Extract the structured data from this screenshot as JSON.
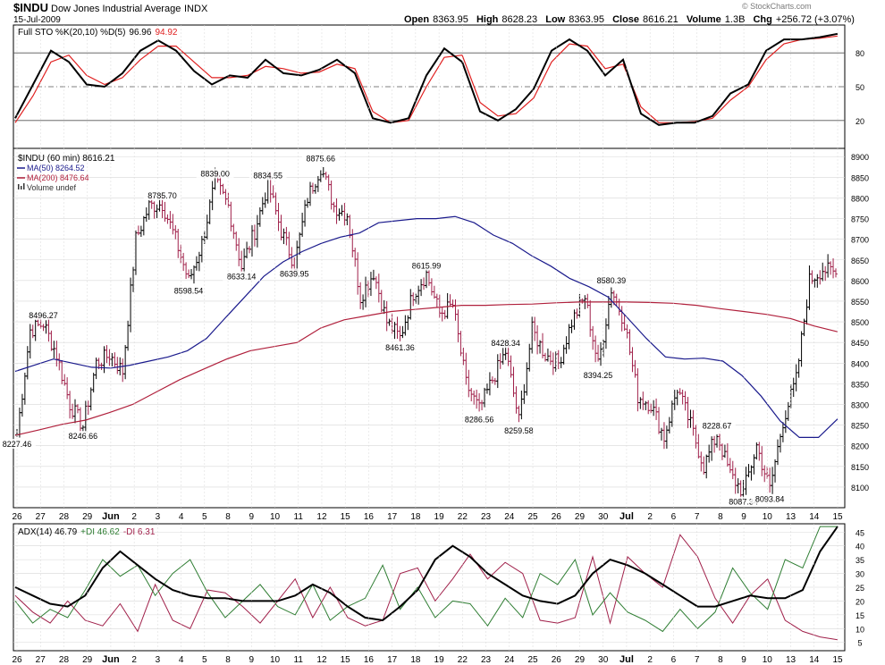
{
  "header": {
    "symbol": "$INDU",
    "name": "Dow Jones Industrial Average",
    "exchange": "INDX",
    "date": "15-Jul-2009",
    "open_label": "Open",
    "open": "8363.95",
    "high_label": "High",
    "high": "8628.23",
    "low_label": "Low",
    "low": "8363.95",
    "close_label": "Close",
    "close": "8616.21",
    "volume_label": "Volume",
    "volume": "1.3B",
    "chg_label": "Chg",
    "chg": "+256.72 (+3.07%)",
    "watermark": "© StockCharts.com"
  },
  "colors": {
    "price_bar": "#000000",
    "price_bar_down": "#a0204a",
    "ma50": "#1a1a8c",
    "ma200": "#b0203c",
    "sto_k": "#000000",
    "sto_d": "#e02020",
    "adx": "#000000",
    "plus_di": "#2e7d32",
    "minus_di": "#a0204a",
    "grid": "#d8d8d8",
    "watermark": "#7a7a7a"
  },
  "chart_data": [
    {
      "type": "line",
      "panel": "stochastic",
      "legend": {
        "prefix": "Full STO %K(20,10) %D(5)",
        "k_value": "96.96",
        "d_value": "94.92"
      },
      "ylim": [
        0,
        100
      ],
      "y_ticks": [
        20,
        50,
        80
      ],
      "reference_lines": [
        20,
        50,
        80
      ],
      "series": [
        {
          "name": "%K",
          "values": [
            22,
            52,
            82,
            72,
            52,
            50,
            62,
            82,
            91,
            82,
            64,
            52,
            60,
            58,
            74,
            62,
            60,
            65,
            74,
            62,
            22,
            18,
            22,
            60,
            84,
            72,
            28,
            20,
            30,
            48,
            82,
            92,
            82,
            60,
            74,
            26,
            16,
            18,
            18,
            24,
            44,
            52,
            82,
            92,
            92,
            94,
            97
          ]
        },
        {
          "name": "%D",
          "values": [
            18,
            42,
            72,
            78,
            60,
            52,
            58,
            74,
            86,
            86,
            72,
            58,
            58,
            60,
            68,
            66,
            62,
            63,
            70,
            66,
            28,
            18,
            20,
            50,
            76,
            78,
            36,
            24,
            26,
            40,
            72,
            88,
            86,
            66,
            70,
            32,
            18,
            18,
            19,
            22,
            38,
            50,
            74,
            88,
            92,
            93,
            95
          ]
        }
      ]
    },
    {
      "type": "bar",
      "subtype": "ohlc",
      "panel": "price",
      "legend": {
        "title": "$INDU (60 min) 8616.21",
        "ma50": "MA(50) 8264.52",
        "ma200": "MA(200) 8476.64",
        "volume": "Volume undef"
      },
      "ylim": [
        8050,
        8920
      ],
      "y_ticks": [
        8100,
        8150,
        8200,
        8250,
        8300,
        8350,
        8400,
        8450,
        8500,
        8550,
        8600,
        8650,
        8700,
        8750,
        8800,
        8850,
        8900
      ],
      "price_path": [
        8227,
        8480,
        8496,
        8420,
        8300,
        8247,
        8400,
        8420,
        8380,
        8700,
        8780,
        8786,
        8700,
        8598,
        8690,
        8839,
        8780,
        8633,
        8720,
        8834,
        8720,
        8640,
        8800,
        8876,
        8780,
        8760,
        8560,
        8620,
        8500,
        8461,
        8570,
        8616,
        8520,
        8540,
        8350,
        8287,
        8360,
        8428,
        8260,
        8480,
        8420,
        8400,
        8500,
        8560,
        8394,
        8580,
        8500,
        8320,
        8300,
        8220,
        8340,
        8250,
        8150,
        8228,
        8130,
        8087,
        8200,
        8094,
        8260,
        8360,
        8600,
        8628,
        8616
      ],
      "series": [
        {
          "name": "MA(50)",
          "values": [
            8380,
            8395,
            8410,
            8400,
            8390,
            8388,
            8395,
            8405,
            8415,
            8430,
            8460,
            8510,
            8560,
            8610,
            8645,
            8670,
            8690,
            8705,
            8715,
            8740,
            8745,
            8750,
            8750,
            8755,
            8740,
            8710,
            8690,
            8660,
            8635,
            8605,
            8585,
            8560,
            8510,
            8460,
            8415,
            8410,
            8412,
            8405,
            8370,
            8320,
            8260,
            8220,
            8220,
            8265
          ]
        },
        {
          "name": "MA(200)",
          "values": [
            8225,
            8238,
            8252,
            8262,
            8280,
            8300,
            8330,
            8360,
            8385,
            8410,
            8430,
            8440,
            8450,
            8485,
            8505,
            8515,
            8525,
            8530,
            8535,
            8540,
            8540,
            8542,
            8543,
            8546,
            8548,
            8548,
            8548,
            8547,
            8545,
            8540,
            8532,
            8525,
            8518,
            8508,
            8490,
            8476
          ]
        }
      ],
      "annotations": [
        {
          "label": "8227.46",
          "x": 0,
          "y": 8227.46
        },
        {
          "label": "8496.27",
          "x": 2,
          "y": 8496.27
        },
        {
          "label": "8246.66",
          "x": 5,
          "y": 8246.66
        },
        {
          "label": "8785.70",
          "x": 11,
          "y": 8785.7
        },
        {
          "label": "8598.54",
          "x": 13,
          "y": 8598.54
        },
        {
          "label": "8839.00",
          "x": 15,
          "y": 8839.0
        },
        {
          "label": "8633.14",
          "x": 17,
          "y": 8633.14
        },
        {
          "label": "8834.55",
          "x": 19,
          "y": 8834.55
        },
        {
          "label": "8639.95",
          "x": 21,
          "y": 8639.95
        },
        {
          "label": "8875.66",
          "x": 23,
          "y": 8875.66
        },
        {
          "label": "8461.36",
          "x": 29,
          "y": 8461.36
        },
        {
          "label": "8615.99",
          "x": 31,
          "y": 8615.99
        },
        {
          "label": "8286.56",
          "x": 35,
          "y": 8286.56
        },
        {
          "label": "8428.34",
          "x": 37,
          "y": 8428.34
        },
        {
          "label": "8259.58",
          "x": 38,
          "y": 8259.58
        },
        {
          "label": "8394.25",
          "x": 44,
          "y": 8394.25
        },
        {
          "label": "8580.39",
          "x": 45,
          "y": 8580.39
        },
        {
          "label": "8228.67",
          "x": 53,
          "y": 8228.67
        },
        {
          "label": "8087.34",
          "x": 55,
          "y": 8087.34
        },
        {
          "label": "8093.84",
          "x": 57,
          "y": 8093.84
        }
      ]
    },
    {
      "type": "line",
      "panel": "adx",
      "legend": {
        "adx": "ADX(14) 46.79",
        "plus_di": "+DI 46.62",
        "minus_di": "-DI 6.31"
      },
      "ylim": [
        2,
        48
      ],
      "y_ticks": [
        5,
        10,
        15,
        20,
        25,
        30,
        35,
        40,
        45
      ],
      "series": [
        {
          "name": "ADX(14)",
          "values": [
            25,
            22,
            19,
            18,
            22,
            32,
            38,
            33,
            28,
            24,
            22,
            21,
            21,
            20,
            20,
            20,
            22,
            26,
            23,
            18,
            14,
            13,
            18,
            24,
            35,
            40,
            36,
            30,
            26,
            22,
            20,
            19,
            22,
            30,
            35,
            33,
            30,
            26,
            22,
            18,
            18,
            20,
            22,
            21,
            21,
            24,
            38,
            47
          ]
        },
        {
          "name": "+DI",
          "values": [
            20,
            12,
            17,
            14,
            24,
            35,
            29,
            33,
            22,
            30,
            35,
            23,
            14,
            20,
            26,
            18,
            15,
            26,
            13,
            18,
            21,
            33,
            17,
            25,
            14,
            20,
            19,
            11,
            21,
            14,
            30,
            26,
            35,
            15,
            23,
            16,
            13,
            9,
            17,
            10,
            16,
            32,
            23,
            17,
            35,
            32,
            47,
            47
          ]
        },
        {
          "name": "-DI",
          "values": [
            22,
            16,
            12,
            20,
            13,
            11,
            19,
            9,
            26,
            13,
            10,
            24,
            23,
            18,
            12,
            20,
            28,
            14,
            25,
            14,
            11,
            13,
            30,
            32,
            20,
            28,
            37,
            28,
            34,
            30,
            13,
            12,
            14,
            36,
            12,
            36,
            30,
            25,
            44,
            36,
            21,
            12,
            22,
            28,
            13,
            9,
            7,
            6
          ]
        }
      ]
    }
  ],
  "x_axis": {
    "labels": [
      "26",
      "27",
      "28",
      "29",
      "Jun",
      "2",
      "3",
      "4",
      "5",
      "8",
      "9",
      "10",
      "11",
      "12",
      "15",
      "16",
      "17",
      "18",
      "19",
      "22",
      "23",
      "24",
      "25",
      "26",
      "29",
      "30",
      "Jul",
      "2",
      "6",
      "7",
      "8",
      "9",
      "10",
      "13",
      "14",
      "15"
    ],
    "bold": [
      "Jun",
      "Jul"
    ]
  }
}
